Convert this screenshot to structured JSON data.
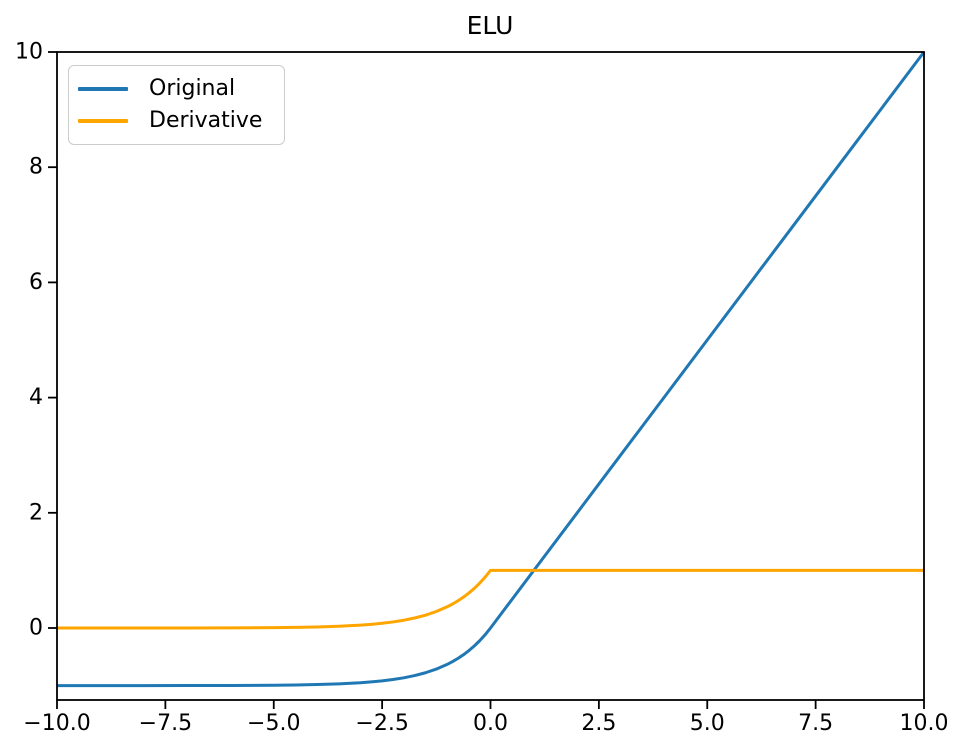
{
  "title": "ELU",
  "legend": {
    "items": [
      {
        "label": "Original",
        "color": "#1f77b4"
      },
      {
        "label": "Derivative",
        "color": "#ffa500"
      }
    ],
    "position": "upper left"
  },
  "axis_color": "#000000",
  "background_color": "#ffffff",
  "chart_data": {
    "type": "line",
    "title": "ELU",
    "xlabel": "",
    "ylabel": "",
    "xlim": [
      -10,
      10
    ],
    "ylim": [
      -1.25,
      10
    ],
    "grid": false,
    "legend_position": "upper left",
    "xticks": [
      -10.0,
      -7.5,
      -5.0,
      -2.5,
      0.0,
      2.5,
      5.0,
      7.5,
      10.0
    ],
    "xtick_labels": [
      "−10.0",
      "−7.5",
      "−5.0",
      "−2.5",
      "0.0",
      "2.5",
      "5.0",
      "7.5",
      "10.0"
    ],
    "yticks": [
      0,
      2,
      4,
      6,
      8,
      10
    ],
    "ytick_labels": [
      "0",
      "2",
      "4",
      "6",
      "8",
      "10"
    ],
    "series": [
      {
        "name": "Original",
        "color": "#1f77b4",
        "points": [
          [
            -10,
            -1.0
          ],
          [
            -9,
            -0.9999
          ],
          [
            -8,
            -0.9997
          ],
          [
            -7,
            -0.9991
          ],
          [
            -6,
            -0.9975
          ],
          [
            -5,
            -0.9933
          ],
          [
            -4.5,
            -0.9889
          ],
          [
            -4,
            -0.9817
          ],
          [
            -3.5,
            -0.9698
          ],
          [
            -3,
            -0.9502
          ],
          [
            -2.75,
            -0.9361
          ],
          [
            -2.5,
            -0.9179
          ],
          [
            -2.25,
            -0.8946
          ],
          [
            -2,
            -0.8647
          ],
          [
            -1.75,
            -0.8262
          ],
          [
            -1.5,
            -0.7769
          ],
          [
            -1.25,
            -0.7135
          ],
          [
            -1,
            -0.6321
          ],
          [
            -0.875,
            -0.5831
          ],
          [
            -0.75,
            -0.5276
          ],
          [
            -0.625,
            -0.4647
          ],
          [
            -0.5,
            -0.3935
          ],
          [
            -0.375,
            -0.3127
          ],
          [
            -0.25,
            -0.2212
          ],
          [
            -0.125,
            -0.1175
          ],
          [
            0,
            0
          ],
          [
            1,
            1
          ],
          [
            2,
            2
          ],
          [
            3,
            3
          ],
          [
            4,
            4
          ],
          [
            5,
            5
          ],
          [
            6,
            6
          ],
          [
            7,
            7
          ],
          [
            8,
            8
          ],
          [
            9,
            9
          ],
          [
            10,
            10
          ]
        ]
      },
      {
        "name": "Derivative",
        "color": "#ffa500",
        "points": [
          [
            -10,
            0.0
          ],
          [
            -9,
            0.0001
          ],
          [
            -8,
            0.0003
          ],
          [
            -7,
            0.0009
          ],
          [
            -6,
            0.0025
          ],
          [
            -5,
            0.0067
          ],
          [
            -4.5,
            0.0111
          ],
          [
            -4,
            0.0183
          ],
          [
            -3.5,
            0.0302
          ],
          [
            -3,
            0.0498
          ],
          [
            -2.75,
            0.0639
          ],
          [
            -2.5,
            0.0821
          ],
          [
            -2.25,
            0.1054
          ],
          [
            -2,
            0.1353
          ],
          [
            -1.75,
            0.1738
          ],
          [
            -1.5,
            0.2231
          ],
          [
            -1.25,
            0.2865
          ],
          [
            -1,
            0.3679
          ],
          [
            -0.875,
            0.4169
          ],
          [
            -0.75,
            0.4724
          ],
          [
            -0.625,
            0.5353
          ],
          [
            -0.5,
            0.6065
          ],
          [
            -0.375,
            0.6873
          ],
          [
            -0.25,
            0.7788
          ],
          [
            -0.125,
            0.8825
          ],
          [
            0,
            1
          ],
          [
            1,
            1
          ],
          [
            2,
            1
          ],
          [
            3,
            1
          ],
          [
            4,
            1
          ],
          [
            5,
            1
          ],
          [
            6,
            1
          ],
          [
            7,
            1
          ],
          [
            8,
            1
          ],
          [
            9,
            1
          ],
          [
            10,
            1
          ]
        ]
      }
    ]
  }
}
